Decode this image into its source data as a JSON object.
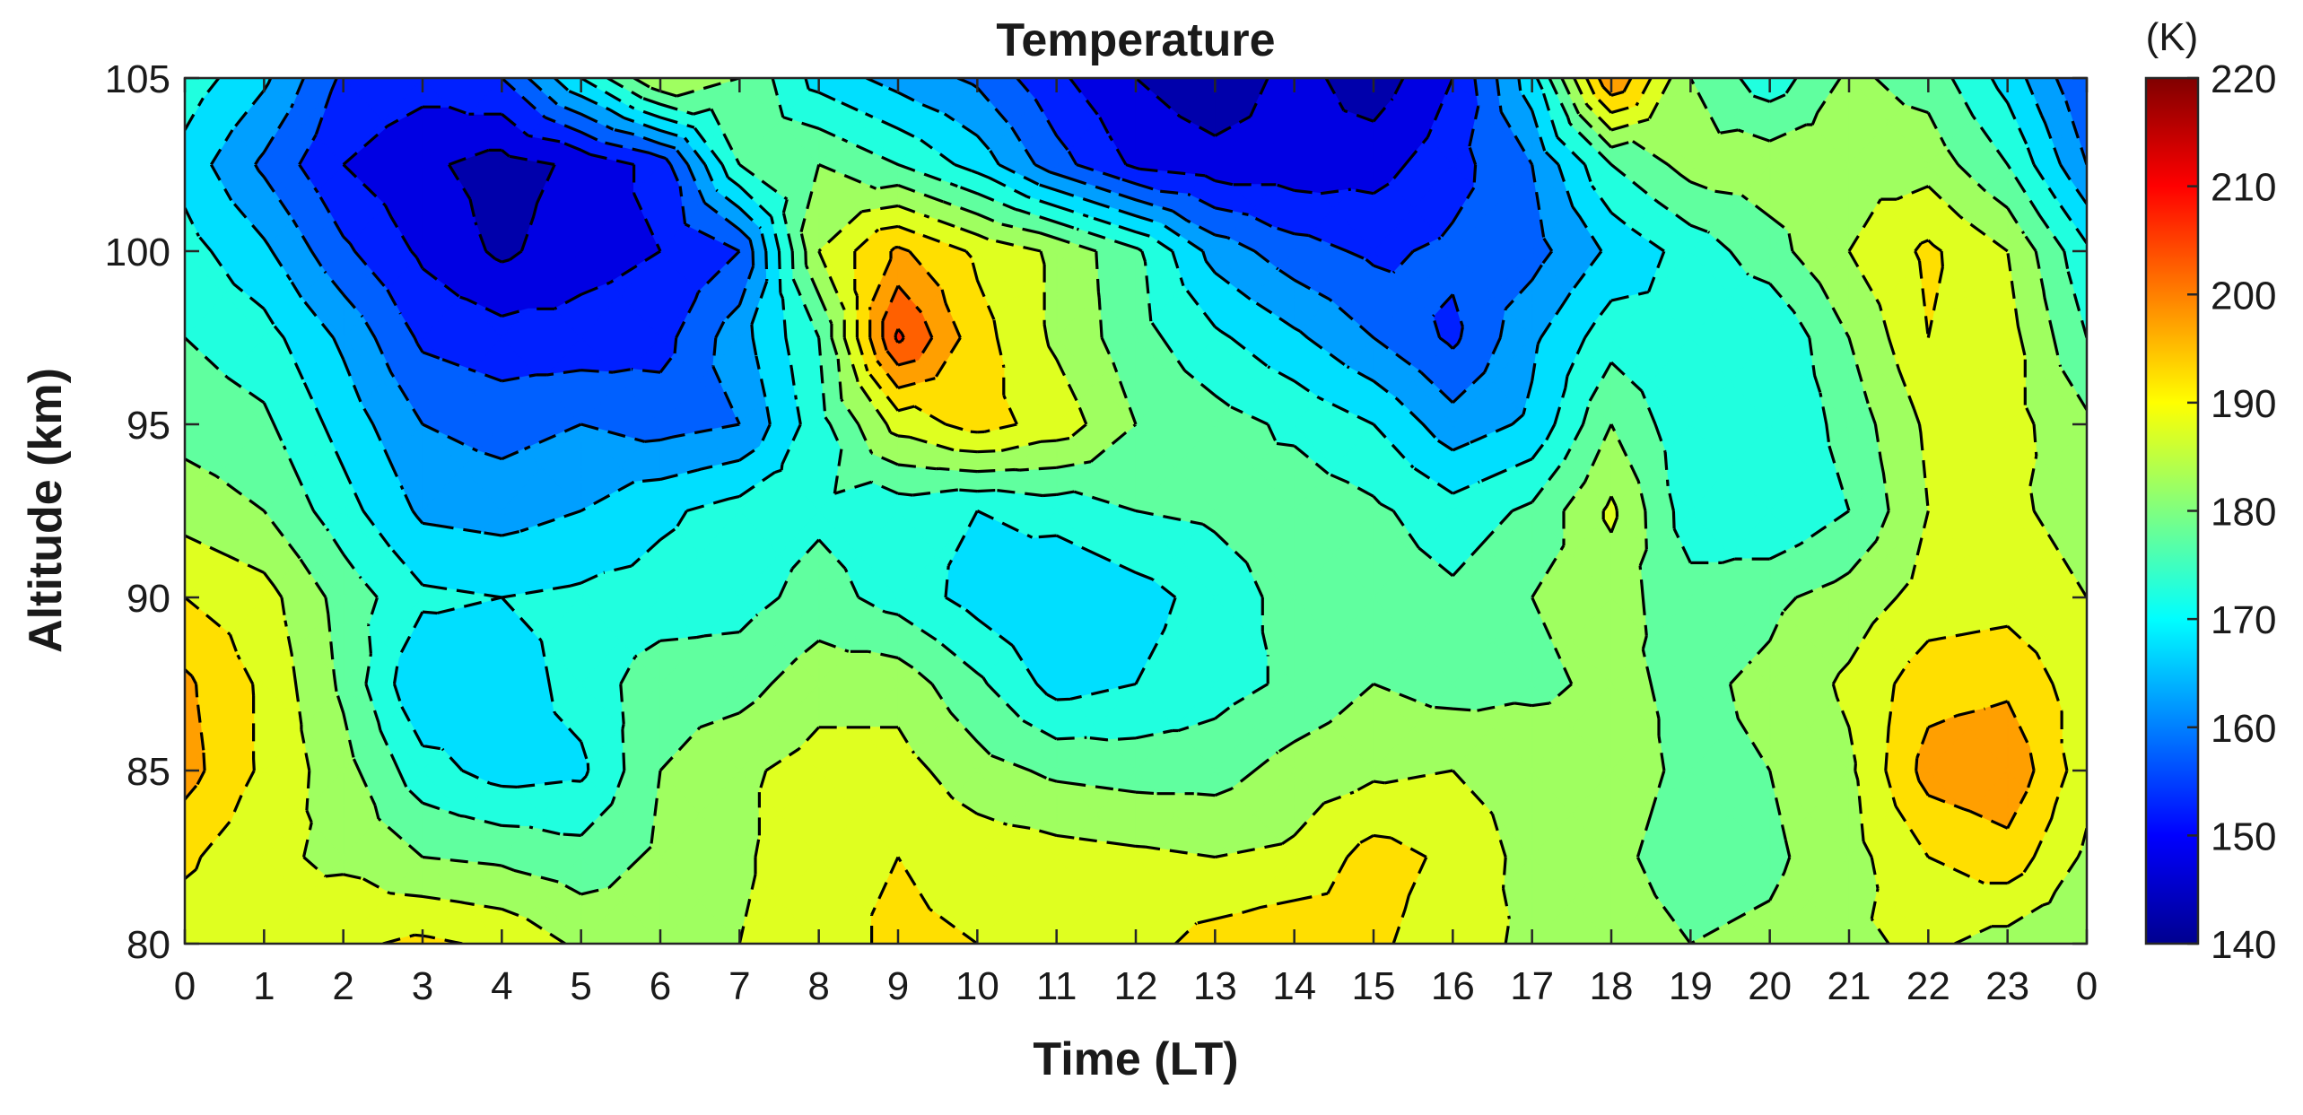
{
  "chart_data": {
    "type": "heatmap",
    "subtype": "filled-contour",
    "title": "Temperature",
    "xlabel": "Time (LT)",
    "ylabel": "Altitude (km)",
    "colorbar_label": "(K)",
    "colormap": "jet",
    "clim": [
      140,
      220
    ],
    "contour_levels": [
      145,
      150,
      155,
      160,
      165,
      170,
      175,
      180,
      185,
      190,
      195,
      200,
      205,
      210,
      215
    ],
    "colorbar_ticks": [
      "140",
      "150",
      "160",
      "170",
      "180",
      "190",
      "200",
      "210",
      "220"
    ],
    "x_ticks": [
      "0",
      "1",
      "2",
      "3",
      "4",
      "5",
      "6",
      "7",
      "8",
      "9",
      "10",
      "11",
      "12",
      "13",
      "14",
      "15",
      "16",
      "17",
      "18",
      "19",
      "20",
      "21",
      "22",
      "23",
      "0"
    ],
    "y_ticks": [
      "80",
      "85",
      "90",
      "95",
      "100",
      "105"
    ],
    "xlim": [
      0,
      24
    ],
    "ylim": [
      80,
      105
    ],
    "x": [
      0,
      1,
      2,
      3,
      4,
      5,
      6,
      7,
      8,
      9,
      10,
      11,
      12,
      13,
      14,
      15,
      16,
      17,
      18,
      19,
      20,
      21,
      22,
      23,
      24
    ],
    "y": [
      80,
      82.5,
      85,
      87.5,
      90,
      92.5,
      95,
      97.5,
      100,
      102.5,
      105
    ],
    "z": [
      [
        187,
        186,
        189,
        191,
        189,
        184,
        183,
        185,
        188,
        191,
        190,
        189,
        188,
        192,
        194,
        191,
        187,
        184,
        182,
        180,
        181,
        184,
        186,
        183,
        181
      ],
      [
        191,
        186,
        184,
        180,
        179,
        177,
        181,
        184,
        189,
        190,
        188,
        187,
        186,
        185,
        186,
        192,
        189,
        183,
        181,
        178,
        179,
        183,
        190,
        193,
        184
      ],
      [
        197,
        189,
        182,
        172,
        168,
        169,
        180,
        184,
        187,
        187,
        182,
        179,
        178,
        178,
        182,
        184,
        185,
        183,
        182,
        179,
        180,
        184,
        197,
        199,
        187
      ],
      [
        196,
        189,
        179,
        165,
        167,
        172,
        178,
        178,
        183,
        183,
        176,
        168,
        170,
        173,
        176,
        180,
        178,
        179,
        181,
        179,
        181,
        186,
        193,
        194,
        187
      ],
      [
        190,
        187,
        178,
        171,
        170,
        171,
        172,
        173,
        177,
        173,
        168,
        165,
        168,
        172,
        177,
        178,
        176,
        180,
        182,
        177,
        179,
        182,
        187,
        188,
        185
      ],
      [
        183,
        180,
        172,
        164,
        163,
        165,
        169,
        172,
        174,
        172,
        170,
        172,
        175,
        176,
        178,
        176,
        172,
        176,
        186,
        172,
        170,
        175,
        185,
        186,
        183
      ],
      [
        178,
        176,
        168,
        160,
        158,
        160,
        158,
        160,
        173,
        187,
        192,
        188,
        180,
        177,
        174,
        170,
        162,
        166,
        180,
        171,
        170,
        177,
        186,
        187,
        181
      ],
      [
        175,
        172,
        164,
        154,
        152,
        152,
        153,
        163,
        175,
        206,
        192,
        184,
        177,
        171,
        166,
        160,
        154,
        164,
        173,
        170,
        170,
        180,
        190,
        187,
        175
      ],
      [
        172,
        166,
        156,
        149,
        144,
        148,
        150,
        155,
        185,
        196,
        189,
        184,
        176,
        163,
        157,
        154,
        156,
        158,
        166,
        172,
        178,
        185,
        191,
        185,
        171
      ],
      [
        168,
        159,
        150,
        146,
        143,
        146,
        152,
        175,
        180,
        175,
        168,
        157,
        149,
        147,
        147,
        148,
        153,
        160,
        175,
        182,
        183,
        183,
        183,
        175,
        160
      ],
      [
        173,
        166,
        154,
        152,
        155,
        170,
        185,
        180,
        168,
        163,
        159,
        151,
        145,
        141,
        147,
        142,
        150,
        168,
        200,
        180,
        172,
        181,
        178,
        168,
        155
      ]
    ]
  }
}
